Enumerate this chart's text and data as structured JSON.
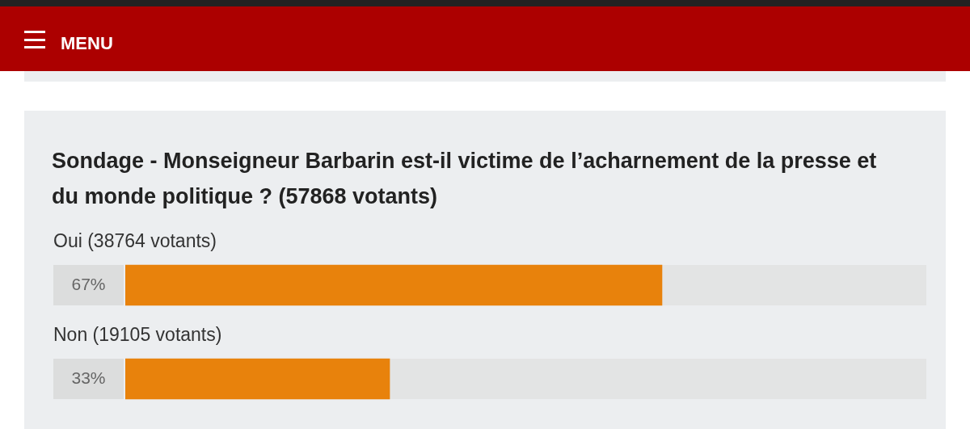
{
  "chart_data": {
    "type": "bar",
    "orientation": "horizontal",
    "title": "Sondage - Monseigneur Barbarin est-il victime de l’acharnement de la presse et du monde politique ? (57868 votants)",
    "categories": [
      "Oui (38764 votants)",
      "Non (19105 votants)"
    ],
    "values": [
      67,
      33
    ],
    "color": "#e8820c",
    "value_labels": [
      "67%",
      "33%"
    ],
    "xlim": [
      0,
      100
    ],
    "annotations": [
      "MENU"
    ]
  }
}
